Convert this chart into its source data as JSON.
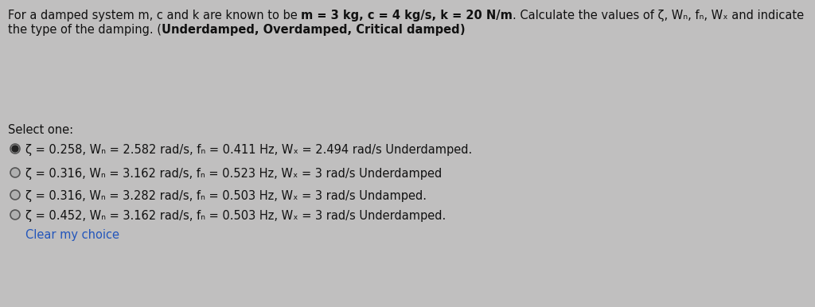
{
  "bg_color": "#c0bfbf",
  "text_color": "#111111",
  "link_color": "#2255bb",
  "font_size": 10.5,
  "title_normal1": "For a damped system m, c and k are known to be ",
  "title_bold1": "m = 3 kg, c = 4 kg/s, k = 20 N/m",
  "title_normal1_end": ". Calculate the values of ζ, Wₙ, fₙ, Wₓ and indicate",
  "title_normal2": "the type of the damping. (",
  "title_bold2": "Underdamped, Overdamped, Critical damped",
  "title_normal2_end": ")",
  "select_one": "Select one:",
  "option1": "ζ = 0.258, Wₙ = 2.582 rad/s, fₙ = 0.411 Hz, Wₓ = 2.494 rad/s Underdamped.",
  "option2": "ζ = 0.316, Wₙ = 3.162 rad/s, fₙ = 0.523 Hz, Wₓ = 3 rad/s Underdamped",
  "option3": "ζ = 0.316, Wₙ = 3.282 rad/s, fₙ = 0.503 Hz, Wₓ = 3 rad/s Undamped.",
  "option4": "ζ = 0.452, Wₙ = 3.162 rad/s, fₙ = 0.503 Hz, Wₓ = 3 rad/s Underdamped.",
  "clear_choice": "Clear my choice"
}
